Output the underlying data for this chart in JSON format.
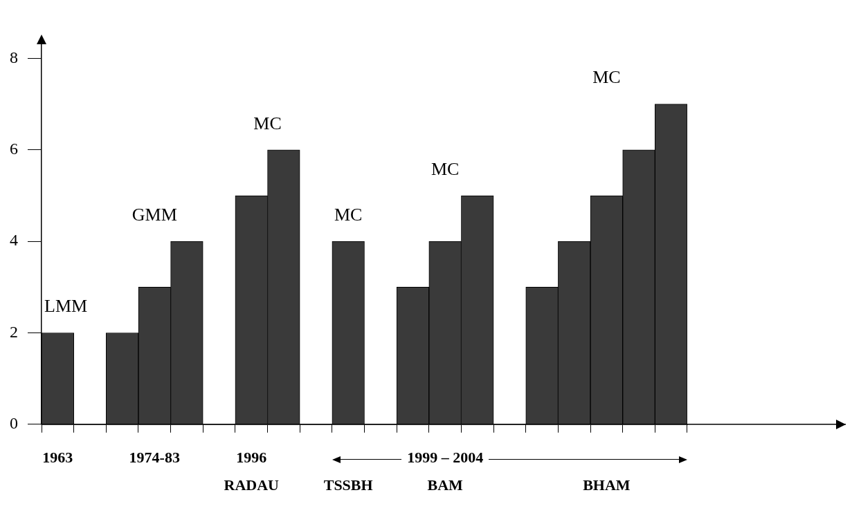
{
  "chart_data": {
    "type": "bar",
    "categories": [
      "1963",
      null,
      null,
      "1974-83",
      null,
      null,
      "1996\nRADAU",
      null,
      null,
      "\nTSSBH",
      null,
      null,
      "1999 – 2004\nBAM",
      null,
      null,
      null,
      null,
      "\nBHAM",
      null,
      null
    ],
    "values": [
      2,
      null,
      2,
      3,
      4,
      null,
      5,
      6,
      null,
      4,
      null,
      3,
      4,
      5,
      null,
      3,
      4,
      5,
      6,
      7
    ],
    "color": "#3a3a3a",
    "ylim": [
      0,
      8.4
    ],
    "yticks": [
      0,
      2,
      4,
      6,
      8
    ],
    "annotations": [
      "LMM",
      "GMM",
      "MC",
      "MC",
      "MC",
      "MC"
    ],
    "grid": false,
    "legend": false
  }
}
